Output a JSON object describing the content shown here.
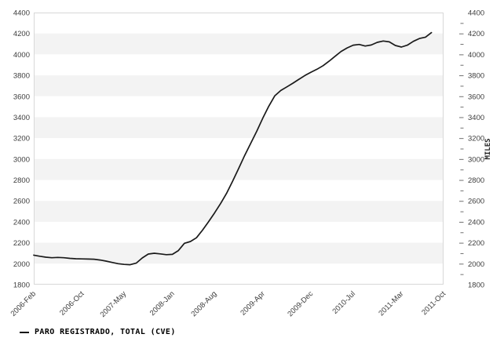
{
  "chart_data": {
    "type": "line",
    "title": "",
    "xlabel": "",
    "ylabel_right": "MILES",
    "ylim": [
      1800,
      4400
    ],
    "ytick_step": 200,
    "y_minor_tick_step": 100,
    "grid": "alternating horizontal gray bands every 200, right axis minor ticks every 100",
    "legend_position": "bottom-left",
    "x_total_months": 68,
    "x_tick_month_index": [
      0,
      8,
      15,
      23,
      30,
      38,
      46,
      53,
      61,
      68
    ],
    "x_tick_labels": [
      "2006-Feb",
      "2006-Oct",
      "2007-May",
      "2008-Jan",
      "2008-Aug",
      "2009-Apr",
      "2009-Dec",
      "2010-Jul",
      "2011-Mar",
      "2011-Oct"
    ],
    "legend": [
      {
        "marker": "line-dash",
        "label": "PARO REGISTRADO, TOTAL (CVE)"
      }
    ],
    "series": [
      {
        "name": "PARO REGISTRADO, TOTAL (CVE)",
        "color": "#1a1a1a",
        "frequency": "monthly",
        "months": [
          "2006-02",
          "2006-03",
          "2006-04",
          "2006-05",
          "2006-06",
          "2006-07",
          "2006-08",
          "2006-09",
          "2006-10",
          "2006-11",
          "2006-12",
          "2007-01",
          "2007-02",
          "2007-03",
          "2007-04",
          "2007-05",
          "2007-06",
          "2007-07",
          "2007-08",
          "2007-09",
          "2007-10",
          "2007-11",
          "2007-12",
          "2008-01",
          "2008-02",
          "2008-03",
          "2008-04",
          "2008-05",
          "2008-06",
          "2008-07",
          "2008-08",
          "2008-09",
          "2008-10",
          "2008-11",
          "2008-12",
          "2009-01",
          "2009-02",
          "2009-03",
          "2009-04",
          "2009-05",
          "2009-06",
          "2009-07",
          "2009-08",
          "2009-09",
          "2009-10",
          "2009-11",
          "2009-12",
          "2010-01",
          "2010-02",
          "2010-03",
          "2010-04",
          "2010-05",
          "2010-06",
          "2010-07",
          "2010-08",
          "2010-09",
          "2010-10",
          "2010-11",
          "2010-12",
          "2011-01",
          "2011-02",
          "2011-03",
          "2011-04",
          "2011-05",
          "2011-06",
          "2011-07",
          "2011-08"
        ],
        "values": [
          2082,
          2071,
          2062,
          2057,
          2060,
          2057,
          2051,
          2047,
          2046,
          2044,
          2043,
          2035,
          2025,
          2012,
          2000,
          1993,
          1990,
          2005,
          2055,
          2092,
          2100,
          2094,
          2086,
          2089,
          2125,
          2195,
          2212,
          2248,
          2320,
          2400,
          2485,
          2575,
          2672,
          2788,
          2910,
          3035,
          3150,
          3265,
          3390,
          3505,
          3605,
          3655,
          3690,
          3725,
          3762,
          3798,
          3830,
          3858,
          3892,
          3935,
          3982,
          4028,
          4062,
          4088,
          4095,
          4080,
          4090,
          4115,
          4128,
          4120,
          4085,
          4070,
          4088,
          4125,
          4152,
          4165,
          4208
        ]
      }
    ]
  },
  "colors": {
    "background": "#ffffff",
    "band_gray": "#f3f3f3",
    "plot_border": "#d8d8d8",
    "axis_text": "#3d3d3d",
    "tick": "#707070",
    "line": "#1a1a1a"
  }
}
